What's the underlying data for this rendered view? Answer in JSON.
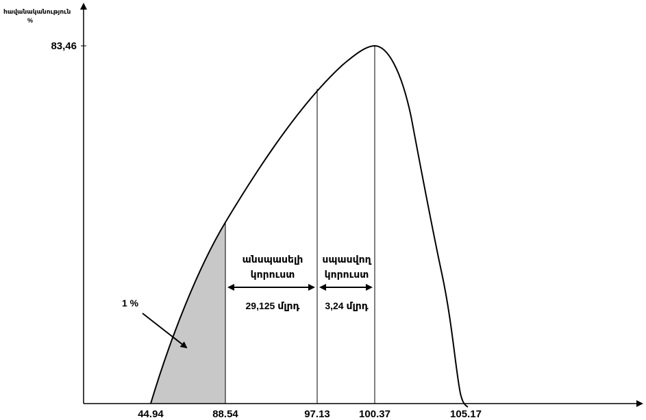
{
  "axes": {
    "y_label_line1": "հավանականություն",
    "y_label_line2": "%",
    "peak_value_label": "83,46",
    "x_ticks": [
      "44.94",
      "88.54",
      "97.13",
      "100.37",
      "105.17"
    ]
  },
  "annotations": {
    "shaded_percent": "1 %",
    "unexpected_loss_line1": "անսպասելի",
    "unexpected_loss_line2": "կորուստ",
    "unexpected_loss_value": "29,125 մլրդ",
    "expected_loss_line1": "սպասվող",
    "expected_loss_line2": "կորուստ",
    "expected_loss_value": "3,24 մլրդ"
  },
  "colors": {
    "shade": "#c8c8c8",
    "line": "#000000"
  }
}
